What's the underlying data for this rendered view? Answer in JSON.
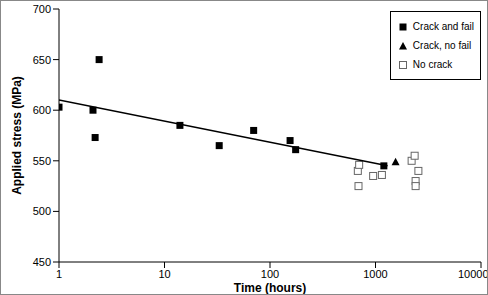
{
  "chart_data": {
    "type": "scatter",
    "x_label": "Time (hours)",
    "y_label": "Applied stress (MPa)",
    "log": "x",
    "xlim": [
      1,
      10000
    ],
    "xticks": [
      1,
      10,
      100,
      1000,
      10000
    ],
    "ylim": [
      450,
      700
    ],
    "yticks": [
      450,
      500,
      550,
      600,
      650,
      700
    ],
    "grid": false,
    "legend": "upper right",
    "series": [
      {
        "name": "Crack and fail",
        "color": "#000000",
        "marker": "square",
        "x": [
          1,
          2.1,
          2.2,
          2.4,
          14,
          33,
          70,
          155,
          175,
          1200
        ],
        "values": [
          603,
          600,
          573,
          650,
          585,
          565,
          580,
          570,
          561,
          545
        ]
      },
      {
        "name": "Crack, no fail",
        "color": "#000000",
        "marker": "triangle",
        "x": [
          1550
        ],
        "values": [
          549
        ]
      },
      {
        "name": "No crack",
        "color": "#666666",
        "marker": "open_square",
        "x": [
          680,
          700,
          690,
          950,
          1150,
          2200,
          2350,
          2550,
          2400,
          2400
        ],
        "values": [
          540,
          546,
          525,
          535,
          536,
          550,
          555,
          540,
          530,
          525
        ]
      },
      {
        "type": "line",
        "color": "#000000",
        "line_style": "solid",
        "x": [
          1,
          1300
        ],
        "values": [
          610,
          545
        ]
      }
    ]
  }
}
